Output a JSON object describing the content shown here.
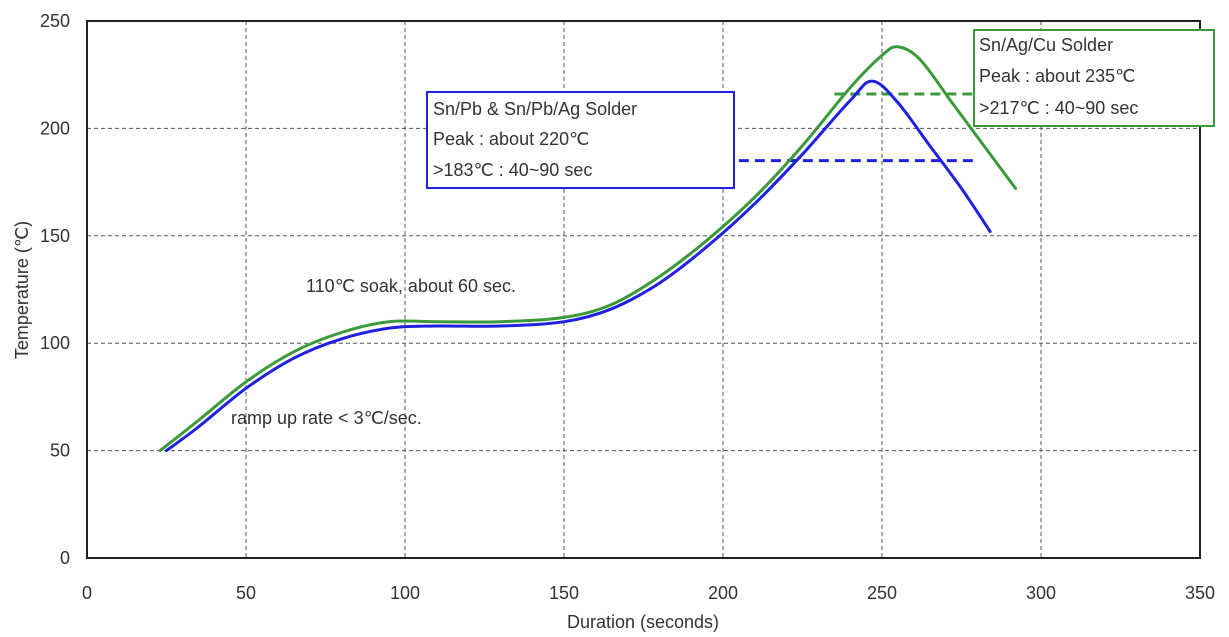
{
  "chart_data": {
    "type": "line",
    "xlabel": "Duration (seconds)",
    "ylabel": "Temperature (℃)",
    "xlim": [
      0,
      350
    ],
    "ylim": [
      0,
      250
    ],
    "x_ticks": [
      "0",
      "50",
      "100",
      "150",
      "200",
      "250",
      "300",
      "350"
    ],
    "y_ticks": [
      "0",
      "50",
      "100",
      "150",
      "200",
      "250"
    ],
    "grid": true,
    "series": [
      {
        "color": "#2020e0",
        "x": [
          25,
          35,
          50,
          65,
          80,
          95,
          110,
          130,
          150,
          165,
          180,
          195,
          210,
          225,
          240,
          247,
          255,
          265,
          275,
          284
        ],
        "y": [
          50,
          61,
          79,
          93,
          102,
          107,
          108,
          108,
          110,
          116,
          128,
          145,
          165,
          188,
          213,
          222,
          212,
          192,
          172,
          152
        ]
      },
      {
        "color": "#3a9a3a",
        "x": [
          23,
          35,
          50,
          65,
          80,
          95,
          110,
          130,
          150,
          165,
          180,
          195,
          210,
          225,
          240,
          250,
          255,
          262,
          272,
          282,
          292
        ],
        "y": [
          50,
          64,
          82,
          96,
          105,
          110,
          110,
          110,
          112,
          118,
          131,
          148,
          168,
          192,
          219,
          234,
          238,
          232,
          212,
          192,
          172
        ]
      }
    ],
    "reference_lines": [
      {
        "color": "#2020e0",
        "y": 185,
        "x_start": 205,
        "x_end": 280
      },
      {
        "color": "#3a9a3a",
        "y": 216,
        "x_start": 235,
        "x_end": 282
      }
    ],
    "annotations": [
      {
        "text": "110℃ soak, about 60 sec."
      },
      {
        "text": "ramp up rate < 3℃/sec."
      }
    ],
    "boxes": [
      {
        "border_color": "#2020e0",
        "lines": [
          "Sn/Pb & Sn/Pb/Ag Solder",
          "Peak : about 220℃",
          ">183℃ : 40~90 sec"
        ]
      },
      {
        "border_color": "#3a9a3a",
        "lines": [
          "Sn/Ag/Cu Solder",
          "Peak : about 235℃",
          ">217℃ : 40~90 sec"
        ]
      }
    ]
  }
}
